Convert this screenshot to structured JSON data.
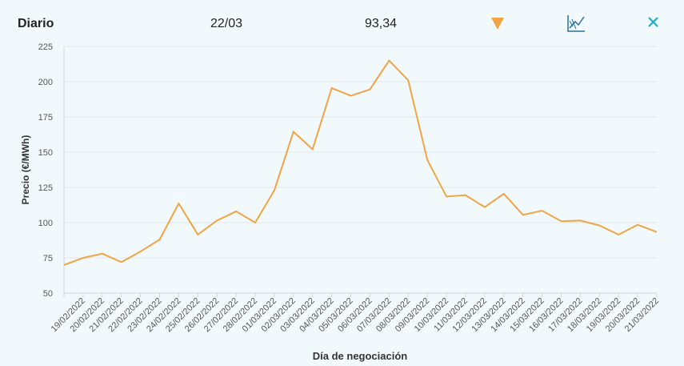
{
  "header": {
    "title": "Diario",
    "date": "22/03",
    "price": "93,34"
  },
  "chart_data": {
    "type": "line",
    "y_label": "Precio (€/MWh)",
    "x_label": "Día de negociación",
    "categories": [
      null,
      "19/02/2022",
      "20/02/2022",
      "21/02/2022",
      "22/02/2022",
      "23/02/2022",
      "24/02/2022",
      "25/02/2022",
      "26/02/2022",
      "27/02/2022",
      "28/02/2022",
      "01/03/2022",
      "02/03/2022",
      "03/03/2022",
      "04/03/2022",
      "05/03/2022",
      "06/03/2022",
      "07/03/2022",
      "08/03/2022",
      "09/03/2022",
      "10/03/2022",
      "11/03/2022",
      "12/03/2022",
      "13/03/2022",
      "14/03/2022",
      "15/03/2022",
      "16/03/2022",
      "17/03/2022",
      "18/03/2022",
      "19/03/2022",
      "20/03/2022",
      "21/03/2022"
    ],
    "values": [
      70,
      75,
      78,
      72,
      79.5,
      88,
      113.6,
      91.5,
      101.5,
      108,
      100,
      123,
      164.5,
      152,
      195.5,
      190,
      194.5,
      215,
      201,
      144.5,
      118.5,
      119.5,
      111,
      120.5,
      105.5,
      108.5,
      101,
      101.5,
      98,
      91.5,
      98.5,
      93.34
    ],
    "color": "#f0a444",
    "ylim": [
      50,
      225
    ],
    "yticks": [
      50,
      75,
      100,
      125,
      150,
      175,
      200,
      225
    ],
    "grid": true
  }
}
